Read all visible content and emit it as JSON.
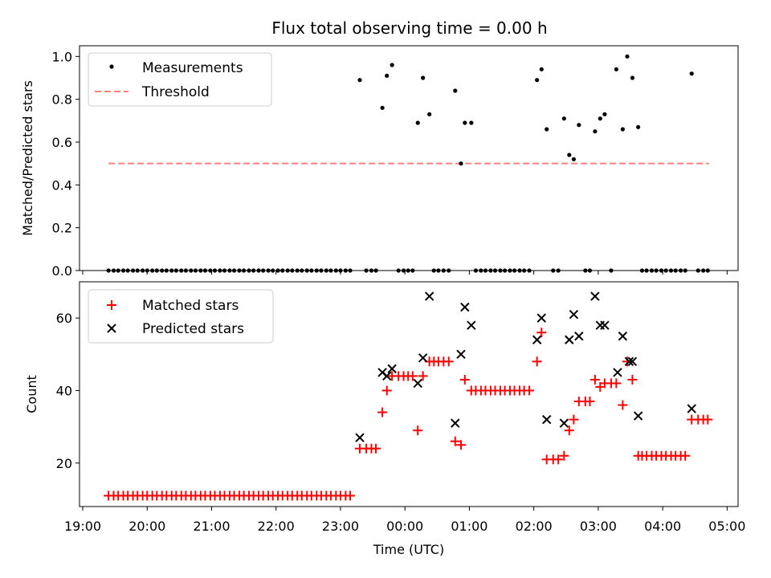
{
  "chart_data": [
    {
      "type": "scatter",
      "title": "Flux total observing time = 0.00 h",
      "xlabel": "",
      "ylabel": "Matched/Predicted stars",
      "xlim_hours": [
        18.95,
        29.17
      ],
      "ylim": [
        0,
        1.05
      ],
      "yticks": [
        0,
        0.2,
        0.4,
        0.6,
        0.8,
        1.0
      ],
      "ytick_labels": [
        "0.0",
        "0.2",
        "0.4",
        "0.6",
        "0.8",
        "1.0"
      ],
      "legend_position": "upper-left",
      "legend": [
        "Measurements",
        "Threshold"
      ],
      "threshold": {
        "value": 0.5,
        "x_start": 19.4,
        "x_end": 28.72,
        "color": "#ff7f7f"
      },
      "measurements": {
        "x": [
          19.4,
          19.48,
          19.55,
          19.63,
          19.7,
          19.78,
          19.85,
          19.93,
          20.0,
          20.08,
          20.15,
          20.23,
          20.3,
          20.38,
          20.45,
          20.53,
          20.6,
          20.68,
          20.75,
          20.83,
          20.9,
          20.98,
          21.05,
          21.13,
          21.2,
          21.28,
          21.35,
          21.43,
          21.5,
          21.58,
          21.65,
          21.73,
          21.8,
          21.88,
          21.95,
          22.03,
          22.1,
          22.18,
          22.25,
          22.33,
          22.4,
          22.48,
          22.55,
          22.63,
          22.7,
          22.78,
          22.85,
          22.93,
          23.0,
          23.08,
          23.15,
          23.3,
          23.4,
          23.48,
          23.55,
          23.65,
          23.72,
          23.8,
          23.9,
          23.98,
          24.05,
          24.12,
          24.2,
          24.28,
          24.38,
          24.45,
          24.52,
          24.6,
          24.68,
          24.78,
          24.87,
          24.93,
          25.03,
          25.1,
          25.18,
          25.25,
          25.33,
          25.4,
          25.48,
          25.55,
          25.63,
          25.7,
          25.78,
          25.85,
          25.93,
          26.05,
          26.12,
          26.2,
          26.3,
          26.38,
          26.47,
          26.55,
          26.62,
          26.7,
          26.8,
          26.87,
          26.95,
          27.03,
          27.1,
          27.2,
          27.28,
          27.38,
          27.45,
          27.53,
          27.62,
          27.68,
          27.75,
          27.83,
          27.9,
          27.98,
          28.05,
          28.13,
          28.2,
          28.28,
          28.35,
          28.45,
          28.55,
          28.63,
          28.7
        ],
        "y": [
          0,
          0,
          0,
          0,
          0,
          0,
          0,
          0,
          0,
          0,
          0,
          0,
          0,
          0,
          0,
          0,
          0,
          0,
          0,
          0,
          0,
          0,
          0,
          0,
          0,
          0,
          0,
          0,
          0,
          0,
          0,
          0,
          0,
          0,
          0,
          0,
          0,
          0,
          0,
          0,
          0,
          0,
          0,
          0,
          0,
          0,
          0,
          0,
          0,
          0,
          0,
          0.89,
          0,
          0,
          0,
          0.76,
          0.91,
          0.96,
          0,
          0,
          0,
          0,
          0.69,
          0.9,
          0.73,
          0,
          0,
          0,
          0,
          0.84,
          0.5,
          0.69,
          0.69,
          0,
          0,
          0,
          0,
          0,
          0,
          0,
          0,
          0,
          0,
          0,
          0,
          0.89,
          0.94,
          0.66,
          0,
          0,
          0.71,
          0.54,
          0.52,
          0.68,
          0,
          0,
          0.65,
          0.71,
          0.73,
          0,
          0.94,
          0.66,
          1.0,
          0.9,
          0.67,
          0,
          0,
          0,
          0,
          0,
          0,
          0,
          0,
          0,
          0,
          0.92,
          0,
          0,
          0
        ]
      }
    },
    {
      "type": "scatter",
      "title": "",
      "xlabel": "Time (UTC)",
      "ylabel": "Count",
      "xlim_hours": [
        18.95,
        29.17
      ],
      "ylim": [
        8,
        70
      ],
      "yticks": [
        20,
        40,
        60
      ],
      "ytick_labels": [
        "20",
        "40",
        "60"
      ],
      "xticks_hours": [
        19,
        20,
        21,
        22,
        23,
        24,
        25,
        26,
        27,
        28,
        29
      ],
      "xtick_labels": [
        "19:00",
        "20:00",
        "21:00",
        "22:00",
        "23:00",
        "00:00",
        "01:00",
        "02:00",
        "03:00",
        "04:00",
        "05:00"
      ],
      "legend_position": "upper-left",
      "legend": [
        "Matched stars",
        "Predicted stars"
      ],
      "matched_color": "#ff0000",
      "predicted_color": "#000000",
      "matched": {
        "x": [
          19.4,
          19.48,
          19.55,
          19.63,
          19.7,
          19.78,
          19.85,
          19.93,
          20.0,
          20.08,
          20.15,
          20.23,
          20.3,
          20.38,
          20.45,
          20.53,
          20.6,
          20.68,
          20.75,
          20.83,
          20.9,
          20.98,
          21.05,
          21.13,
          21.2,
          21.28,
          21.35,
          21.43,
          21.5,
          21.58,
          21.65,
          21.73,
          21.8,
          21.88,
          21.95,
          22.03,
          22.1,
          22.18,
          22.25,
          22.33,
          22.4,
          22.48,
          22.55,
          22.63,
          22.7,
          22.78,
          22.85,
          22.93,
          23.0,
          23.08,
          23.15,
          23.3,
          23.4,
          23.48,
          23.55,
          23.65,
          23.72,
          23.8,
          23.9,
          23.98,
          24.05,
          24.12,
          24.2,
          24.28,
          24.38,
          24.45,
          24.52,
          24.6,
          24.68,
          24.78,
          24.87,
          24.93,
          25.03,
          25.1,
          25.18,
          25.25,
          25.33,
          25.4,
          25.48,
          25.55,
          25.63,
          25.7,
          25.78,
          25.85,
          25.93,
          26.05,
          26.12,
          26.2,
          26.3,
          26.38,
          26.47,
          26.55,
          26.62,
          26.7,
          26.8,
          26.87,
          26.95,
          27.03,
          27.1,
          27.2,
          27.28,
          27.38,
          27.45,
          27.53,
          27.62,
          27.68,
          27.75,
          27.83,
          27.9,
          27.98,
          28.05,
          28.13,
          28.2,
          28.28,
          28.35,
          28.45,
          28.55,
          28.63,
          28.7
        ],
        "y": [
          11,
          11,
          11,
          11,
          11,
          11,
          11,
          11,
          11,
          11,
          11,
          11,
          11,
          11,
          11,
          11,
          11,
          11,
          11,
          11,
          11,
          11,
          11,
          11,
          11,
          11,
          11,
          11,
          11,
          11,
          11,
          11,
          11,
          11,
          11,
          11,
          11,
          11,
          11,
          11,
          11,
          11,
          11,
          11,
          11,
          11,
          11,
          11,
          11,
          11,
          11,
          24,
          24,
          24,
          24,
          34,
          40,
          44,
          44,
          44,
          44,
          44,
          29,
          44,
          48,
          48,
          48,
          48,
          48,
          26,
          25,
          43,
          40,
          40,
          40,
          40,
          40,
          40,
          40,
          40,
          40,
          40,
          40,
          40,
          40,
          48,
          56,
          21,
          21,
          21,
          22,
          29,
          32,
          37,
          37,
          37,
          43,
          41,
          42,
          42,
          42,
          36,
          48,
          43,
          22,
          22,
          22,
          22,
          22,
          22,
          22,
          22,
          22,
          22,
          22,
          32,
          32,
          32,
          32
        ]
      },
      "predicted": {
        "x": [
          23.3,
          23.65,
          23.72,
          23.8,
          24.2,
          24.28,
          24.38,
          24.78,
          24.87,
          24.93,
          25.03,
          26.05,
          26.12,
          26.2,
          26.47,
          26.55,
          26.62,
          26.7,
          26.95,
          27.03,
          27.1,
          27.3,
          27.38,
          27.48,
          27.53,
          27.62,
          28.45
        ],
        "y": [
          27,
          45,
          44,
          46,
          42,
          49,
          66,
          31,
          50,
          63,
          58,
          54,
          60,
          32,
          31,
          54,
          61,
          55,
          66,
          58,
          58,
          45,
          55,
          48,
          48,
          33,
          35
        ]
      }
    }
  ]
}
